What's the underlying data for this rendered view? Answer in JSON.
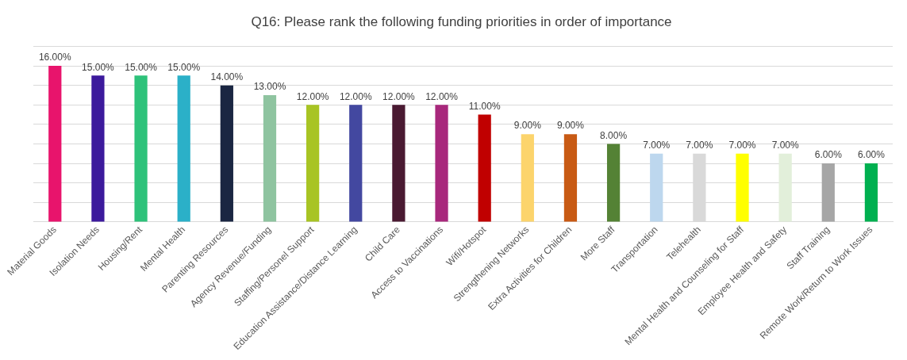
{
  "chart_data": {
    "type": "bar",
    "title": "Q16: Please rank the following funding priorities in order of importance",
    "categories": [
      "Material Goods",
      "Isolation Needs",
      "Housing/Rent",
      "Mental Health",
      "Parenting Resources",
      "Agency Revenue/Funding",
      "Staffing/Personel Support",
      "Education Assistance/Distance Learning",
      "Child Care",
      "Access to Vaccinations",
      "Wifi/Hotspot",
      "Strengthening Networks",
      "Extra Activities for Children",
      "More Staff",
      "Transportation",
      "Telehealth",
      "Mental Health and Counseling for Staff",
      "Employee Health and Safety",
      "Staff Training",
      "Remote Work/Return to Work Issues"
    ],
    "values": [
      16,
      15,
      15,
      15,
      14,
      13,
      12,
      12,
      12,
      12,
      11,
      9,
      9,
      8,
      7,
      7,
      7,
      7,
      6,
      6
    ],
    "value_labels": [
      "16.00%",
      "15.00%",
      "15.00%",
      "15.00%",
      "14.00%",
      "13.00%",
      "12.00%",
      "12.00%",
      "12.00%",
      "12.00%",
      "11.00%",
      "9.00%",
      "9.00%",
      "8.00%",
      "7.00%",
      "7.00%",
      "7.00%",
      "7.00%",
      "6.00%",
      "6.00%"
    ],
    "colors": [
      "#e8146c",
      "#3c1a9c",
      "#2ec27a",
      "#2bb0c8",
      "#1a2642",
      "#8fc4a0",
      "#a8c424",
      "#4348a0",
      "#4a1a32",
      "#a8287c",
      "#c00000",
      "#fcd46c",
      "#c85a14",
      "#548235",
      "#bdd7ee",
      "#d9d9d9",
      "#ffff00",
      "#e2efda",
      "#a6a6a6",
      "#00b050"
    ],
    "ylim": [
      0,
      18
    ],
    "yticks": [
      {
        "value": 0,
        "label": null
      },
      {
        "value": 2,
        "label": null
      },
      {
        "value": 4,
        "label": null
      },
      {
        "value": 6,
        "label": null
      },
      {
        "value": 8,
        "label": null
      },
      {
        "value": 10,
        "label": null
      },
      {
        "value": 12,
        "label": null
      },
      {
        "value": 14,
        "label": null
      },
      {
        "value": 16,
        "label": null
      },
      {
        "value": 18,
        "label": null
      }
    ],
    "tick_labels": "x",
    "grid": "y",
    "legend": false
  }
}
